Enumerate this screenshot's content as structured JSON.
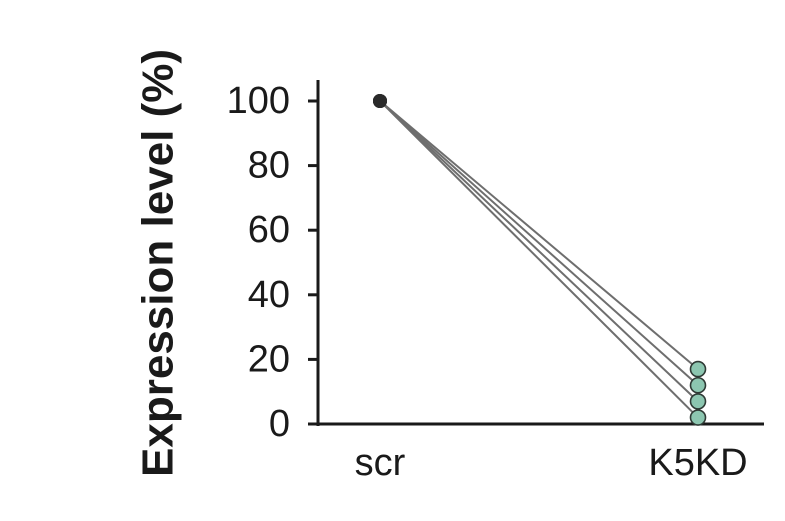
{
  "chart_data": {
    "type": "line",
    "title": "",
    "xlabel": "",
    "ylabel": "Expression level (%)",
    "categories": [
      "scr",
      "K5KD"
    ],
    "ylim": [
      0,
      100
    ],
    "yticks": [
      "0",
      "20",
      "40",
      "60",
      "80",
      "100"
    ],
    "series": [
      {
        "values": [
          100,
          17
        ]
      },
      {
        "values": [
          100,
          12
        ]
      },
      {
        "values": [
          100,
          7
        ]
      },
      {
        "values": [
          100,
          2
        ]
      }
    ],
    "grid": false,
    "legend": "none"
  },
  "colors": {
    "axis": "#1a1a1a",
    "line": "#6e6e6e",
    "scr_point": "#2a2a2a",
    "k5kd_point": "#8cc6b0",
    "point_edge": "#2f3a35"
  }
}
